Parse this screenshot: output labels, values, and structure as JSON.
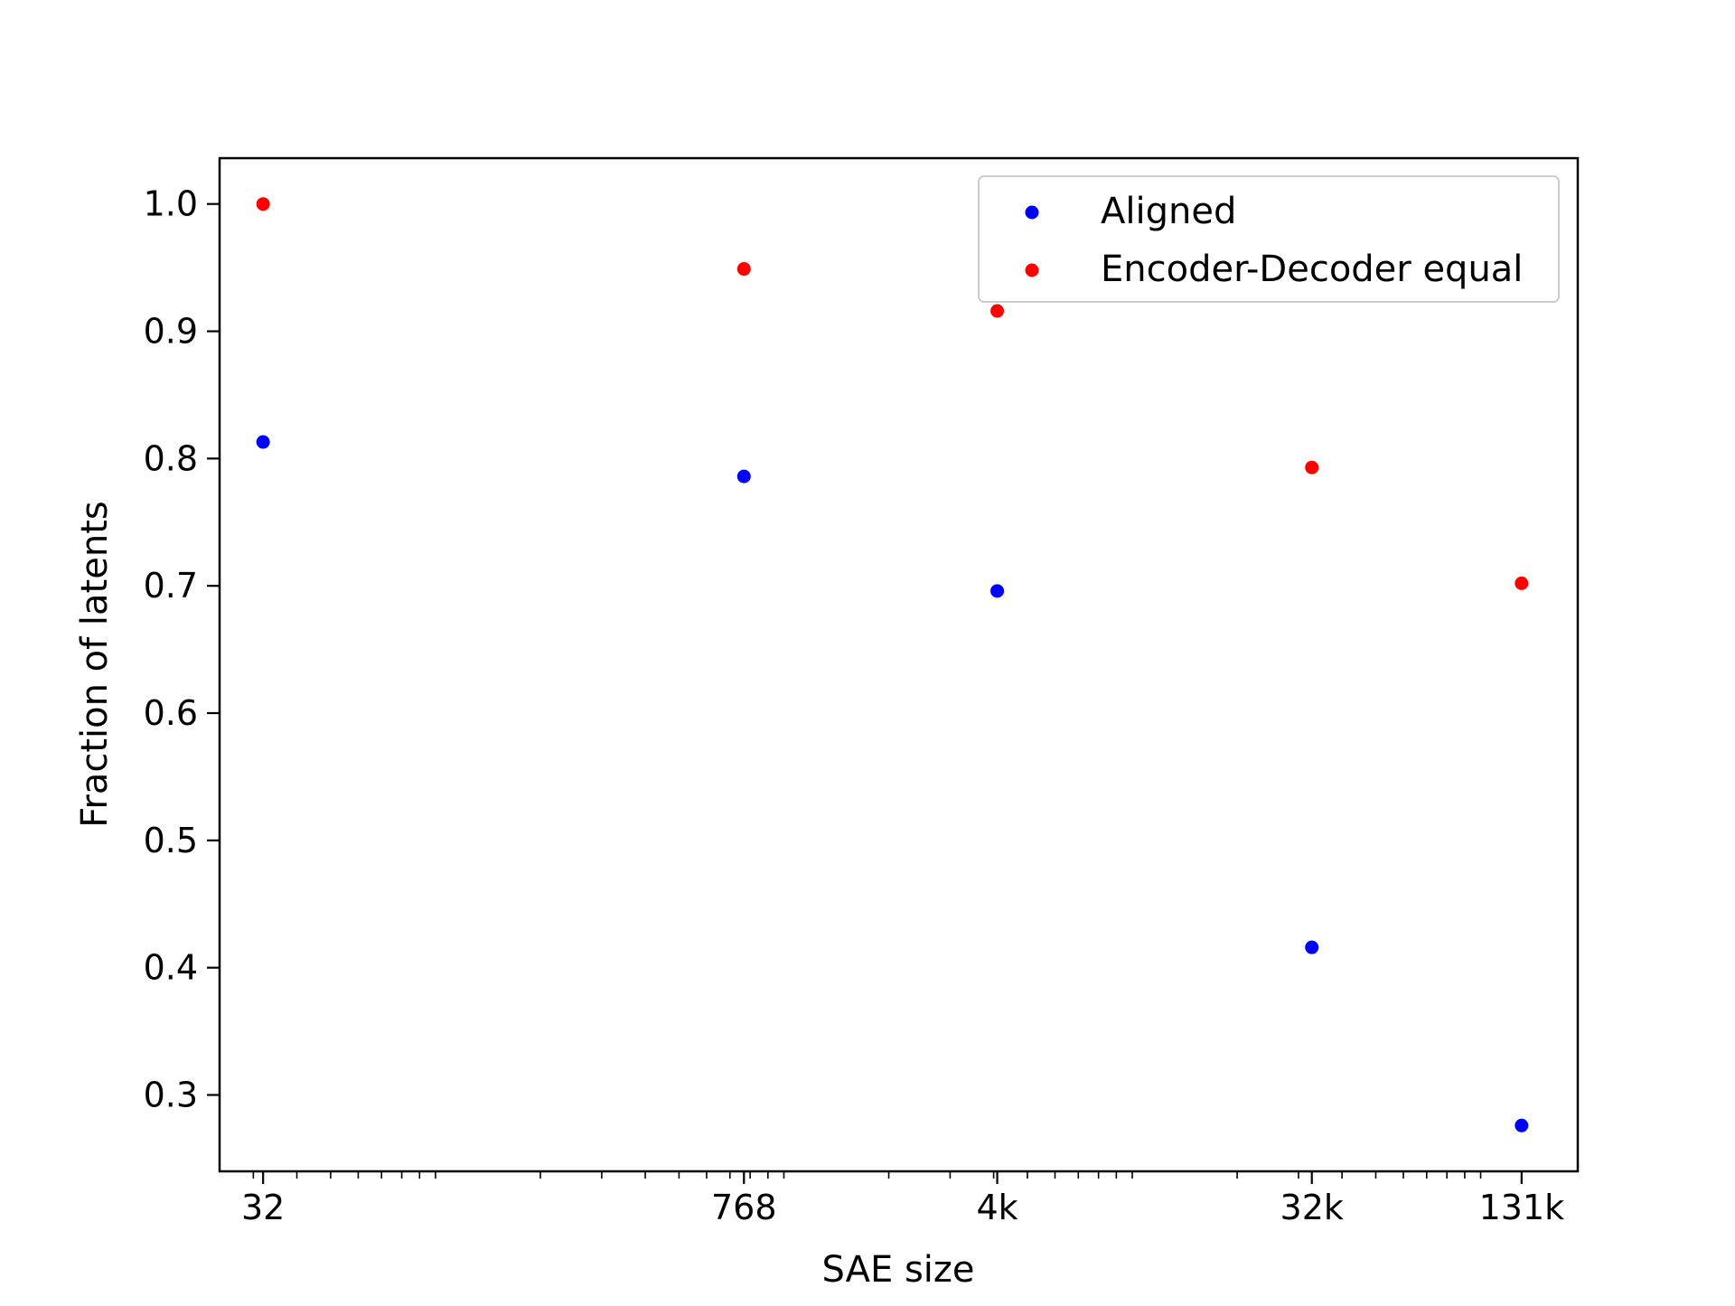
{
  "chart_data": {
    "type": "scatter",
    "title": "",
    "xlabel": "SAE size",
    "ylabel": "Fraction of latents",
    "xscale": "log",
    "xlim": [
      24,
      190000
    ],
    "ylim": [
      0.24,
      1.036
    ],
    "xticks": [
      {
        "value": 32,
        "label": "32"
      },
      {
        "value": 768,
        "label": "768"
      },
      {
        "value": 4096,
        "label": "4k"
      },
      {
        "value": 32768,
        "label": "32k"
      },
      {
        "value": 131072,
        "label": "131k"
      }
    ],
    "yticks": [
      {
        "value": 0.3,
        "label": "0.3"
      },
      {
        "value": 0.4,
        "label": "0.4"
      },
      {
        "value": 0.5,
        "label": "0.5"
      },
      {
        "value": 0.6,
        "label": "0.6"
      },
      {
        "value": 0.7,
        "label": "0.7"
      },
      {
        "value": 0.8,
        "label": "0.8"
      },
      {
        "value": 0.9,
        "label": "0.9"
      },
      {
        "value": 1.0,
        "label": "1.0"
      }
    ],
    "legend_position": "top-right",
    "grid": false,
    "series": [
      {
        "name": "Aligned",
        "color": "#0000ff",
        "points": [
          {
            "x": 32,
            "y": 0.813
          },
          {
            "x": 768,
            "y": 0.786
          },
          {
            "x": 4096,
            "y": 0.696
          },
          {
            "x": 32768,
            "y": 0.416
          },
          {
            "x": 131072,
            "y": 0.276
          }
        ]
      },
      {
        "name": "Encoder-Decoder equal",
        "color": "#ff0000",
        "points": [
          {
            "x": 32,
            "y": 1.0
          },
          {
            "x": 768,
            "y": 0.949
          },
          {
            "x": 4096,
            "y": 0.916
          },
          {
            "x": 32768,
            "y": 0.793
          },
          {
            "x": 131072,
            "y": 0.702
          }
        ]
      }
    ]
  }
}
